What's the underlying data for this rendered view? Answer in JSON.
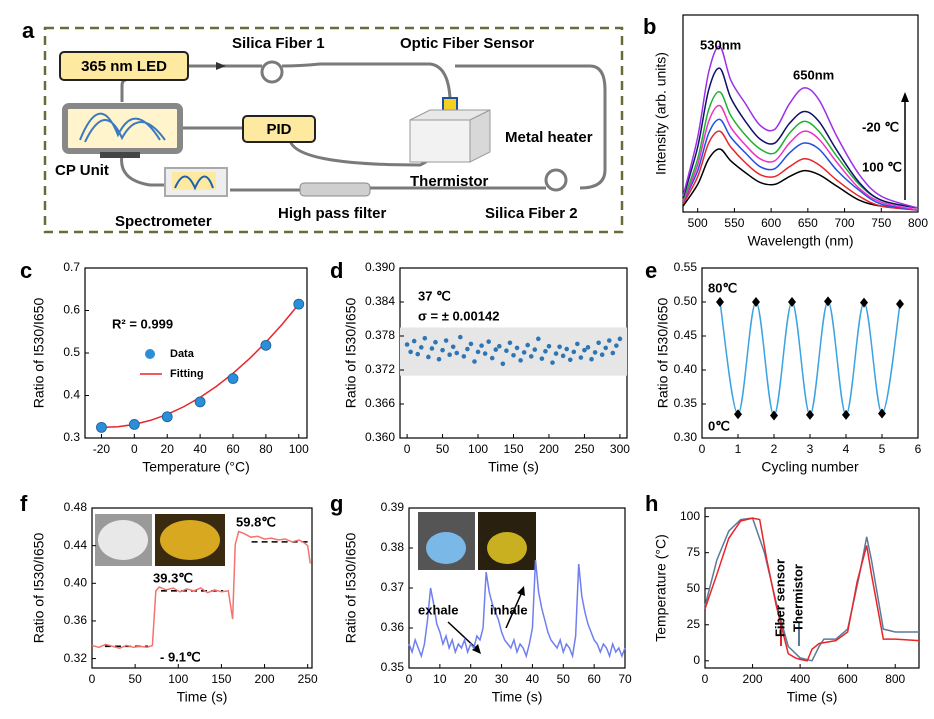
{
  "diagram": {
    "panel": "a",
    "led": "365 nm LED",
    "fiber1": "Silica Fiber 1",
    "sensor": "Optic Fiber Sensor",
    "pid": "PID",
    "heater": "Metal heater",
    "cp": "CP Unit",
    "thermistor": "Thermistor",
    "spectrometer": "Spectrometer",
    "filter": "High pass filter",
    "fiber2": "Silica Fiber 2"
  },
  "chart_data": [
    {
      "type": "line",
      "panel": "b",
      "x_label": "Wavelength (nm)",
      "y_label": "Intensity (arb. units)",
      "xlim": [
        480,
        800
      ],
      "xticks": [
        500,
        550,
        600,
        650,
        700,
        750,
        800
      ],
      "ylim": [
        0,
        1
      ],
      "smooth": true,
      "x": [
        480,
        500,
        515,
        530,
        545,
        565,
        585,
        605,
        625,
        645,
        665,
        690,
        720,
        750,
        800
      ],
      "series": [
        {
          "color": "#000000",
          "line": true,
          "values": [
            0.03,
            0.14,
            0.27,
            0.32,
            0.26,
            0.2,
            0.15,
            0.14,
            0.18,
            0.21,
            0.19,
            0.13,
            0.06,
            0.03,
            0.01
          ]
        },
        {
          "color": "#e8262a",
          "line": true,
          "values": [
            0.04,
            0.18,
            0.35,
            0.41,
            0.33,
            0.25,
            0.19,
            0.18,
            0.23,
            0.27,
            0.24,
            0.16,
            0.08,
            0.03,
            0.01
          ]
        },
        {
          "color": "#2050e0",
          "line": true,
          "values": [
            0.05,
            0.21,
            0.4,
            0.47,
            0.38,
            0.3,
            0.23,
            0.22,
            0.3,
            0.35,
            0.32,
            0.21,
            0.11,
            0.04,
            0.01
          ]
        },
        {
          "color": "#f030c8",
          "line": true,
          "values": [
            0.05,
            0.24,
            0.46,
            0.54,
            0.43,
            0.34,
            0.27,
            0.26,
            0.35,
            0.41,
            0.37,
            0.25,
            0.12,
            0.05,
            0.01
          ]
        },
        {
          "color": "#20b030",
          "line": true,
          "values": [
            0.06,
            0.27,
            0.52,
            0.61,
            0.49,
            0.39,
            0.32,
            0.3,
            0.4,
            0.46,
            0.41,
            0.28,
            0.14,
            0.06,
            0.02
          ]
        },
        {
          "color": "#10106a",
          "line": true,
          "values": [
            0.07,
            0.33,
            0.62,
            0.73,
            0.58,
            0.46,
            0.37,
            0.35,
            0.45,
            0.51,
            0.46,
            0.31,
            0.15,
            0.06,
            0.02
          ]
        },
        {
          "color": "#9a30e8",
          "line": true,
          "values": [
            0.08,
            0.38,
            0.71,
            0.84,
            0.67,
            0.55,
            0.44,
            0.42,
            0.55,
            0.63,
            0.57,
            0.38,
            0.19,
            0.08,
            0.02
          ]
        }
      ],
      "annotations": [
        "530nm",
        "650nm",
        "-20 ℃",
        "100 ℃"
      ]
    },
    {
      "type": "scatter",
      "panel": "c",
      "x_label": "Temperature (°C)",
      "y_label": "Ratio of I530/I650",
      "xlim": [
        -30,
        105
      ],
      "xticks": [
        -20,
        0,
        20,
        40,
        60,
        80,
        100
      ],
      "ylim": [
        0.3,
        0.7
      ],
      "yticks": [
        0.3,
        0.4,
        0.5,
        0.6,
        0.7
      ],
      "legend": "center left",
      "series": [
        {
          "name": "Fitting",
          "color": "#e8262a",
          "line": true,
          "x": [
            -20,
            -10,
            0,
            10,
            20,
            30,
            40,
            50,
            60,
            70,
            80,
            90,
            100
          ],
          "values": [
            0.325,
            0.3264,
            0.332,
            0.3417,
            0.3555,
            0.3735,
            0.3956,
            0.4218,
            0.4522,
            0.4866,
            0.5253,
            0.568,
            0.615
          ]
        },
        {
          "name": "Data",
          "color": "#2a8fd8",
          "marker": "circle",
          "x": [
            -20,
            0,
            20,
            40,
            60,
            80,
            100
          ],
          "values": [
            0.325,
            0.332,
            0.35,
            0.385,
            0.44,
            0.518,
            0.615
          ]
        }
      ],
      "annotations": [
        "R² = 0.999"
      ]
    },
    {
      "type": "scatter",
      "panel": "d",
      "x_label": "Time (s)",
      "y_label": "Ratio of I530/I650",
      "xlim": [
        -10,
        310
      ],
      "xticks": [
        0,
        50,
        100,
        150,
        200,
        250,
        300
      ],
      "ylim": [
        0.36,
        0.39
      ],
      "yticks": [
        {
          "value": 0.36,
          "label": "0.360"
        },
        0.366,
        0.372,
        0.378,
        0.384,
        {
          "value": 0.39,
          "label": "0.390"
        }
      ],
      "band": [
        0.371,
        0.3795
      ],
      "series": [
        {
          "color": "#2e75b6",
          "marker": "dot",
          "x": [
            0,
            5,
            10,
            15,
            20,
            25,
            30,
            35,
            40,
            45,
            50,
            55,
            60,
            65,
            70,
            75,
            80,
            85,
            90,
            95,
            100,
            105,
            110,
            115,
            120,
            125,
            130,
            135,
            140,
            145,
            150,
            155,
            160,
            165,
            170,
            175,
            180,
            185,
            190,
            195,
            200,
            205,
            210,
            215,
            220,
            225,
            230,
            235,
            240,
            245,
            250,
            255,
            260,
            265,
            270,
            275,
            280,
            285,
            290,
            295,
            300
          ],
          "values": [
            0.3765,
            0.3752,
            0.3771,
            0.3748,
            0.376,
            0.3776,
            0.3743,
            0.3758,
            0.3769,
            0.3739,
            0.3755,
            0.3772,
            0.3747,
            0.3761,
            0.375,
            0.3778,
            0.3744,
            0.3757,
            0.3766,
            0.3735,
            0.3752,
            0.3763,
            0.3749,
            0.377,
            0.3741,
            0.3756,
            0.3762,
            0.3731,
            0.3754,
            0.3768,
            0.3746,
            0.3759,
            0.3737,
            0.3751,
            0.3764,
            0.3744,
            0.3756,
            0.3775,
            0.374,
            0.3753,
            0.3762,
            0.3733,
            0.3749,
            0.3761,
            0.3745,
            0.3757,
            0.3738,
            0.3752,
            0.3766,
            0.3742,
            0.3755,
            0.376,
            0.3739,
            0.3751,
            0.3768,
            0.3747,
            0.3759,
            0.3772,
            0.375,
            0.3763,
            0.3775
          ]
        }
      ],
      "annotations": [
        "37 ℃",
        "σ = ± 0.00142"
      ]
    },
    {
      "type": "line",
      "panel": "e",
      "x_label": "Cycling number",
      "y_label": "Ratio of I530/I650",
      "xlim": [
        0,
        6
      ],
      "xticks": [
        0,
        1,
        2,
        3,
        4,
        5,
        6
      ],
      "ylim": [
        0.3,
        0.55
      ],
      "yticks": [
        {
          "value": 0.3,
          "label": "0.30"
        },
        0.35,
        {
          "value": 0.4,
          "label": "0.40"
        },
        0.45,
        {
          "value": 0.5,
          "label": "0.50"
        },
        0.55
      ],
      "smooth": true,
      "series": [
        {
          "color": "#3ba3e0",
          "line": true,
          "marker": "diamond",
          "marker_color": "#000000",
          "x": [
            0.5,
            1,
            1.5,
            2,
            2.5,
            3,
            3.5,
            4,
            4.5,
            5,
            5.5
          ],
          "values": [
            0.5,
            0.335,
            0.5,
            0.333,
            0.5,
            0.334,
            0.501,
            0.334,
            0.499,
            0.336,
            0.497
          ]
        }
      ],
      "annotations": [
        "80℃",
        "0℃"
      ]
    },
    {
      "type": "line",
      "panel": "f",
      "x_label": "Time (s)",
      "y_label": "Ratio of I530/I650",
      "xlim": [
        0,
        255
      ],
      "xticks": [
        0,
        50,
        100,
        150,
        200,
        250
      ],
      "ylim": [
        0.31,
        0.48
      ],
      "yticks": [
        0.32,
        0.36,
        {
          "value": 0.4,
          "label": "0.40"
        },
        0.44,
        0.48
      ],
      "levels": [
        {
          "x": [
            15,
            65
          ],
          "value": 0.333
        },
        {
          "x": [
            80,
            152
          ],
          "value": 0.392
        },
        {
          "x": [
            185,
            250
          ],
          "value": 0.444
        }
      ],
      "series": [
        {
          "color": "#f4736e",
          "line": true,
          "x": [
            0,
            8,
            16,
            24,
            32,
            40,
            48,
            56,
            64,
            70,
            74,
            78,
            86,
            94,
            102,
            110,
            118,
            126,
            134,
            142,
            150,
            158,
            163,
            166,
            170,
            176,
            184,
            192,
            200,
            208,
            216,
            224,
            232,
            240,
            246,
            250,
            253
          ],
          "values": [
            0.334,
            0.332,
            0.335,
            0.333,
            0.331,
            0.334,
            0.332,
            0.333,
            0.332,
            0.334,
            0.392,
            0.396,
            0.393,
            0.395,
            0.391,
            0.394,
            0.392,
            0.395,
            0.39,
            0.393,
            0.391,
            0.392,
            0.362,
            0.441,
            0.455,
            0.453,
            0.449,
            0.45,
            0.447,
            0.448,
            0.446,
            0.447,
            0.444,
            0.446,
            0.443,
            0.44,
            0.421
          ]
        }
      ],
      "annotations": [
        "- 9.1℃",
        "39.3℃",
        "59.8℃"
      ]
    },
    {
      "type": "line",
      "panel": "g",
      "x_label": "Time (s)",
      "y_label": "Ratio of I530/I650",
      "xlim": [
        0,
        70
      ],
      "xticks": [
        0,
        10,
        20,
        30,
        40,
        50,
        60,
        70
      ],
      "ylim": [
        0.35,
        0.39
      ],
      "yticks": [
        0.35,
        0.36,
        0.37,
        0.38,
        0.39
      ],
      "series": [
        {
          "color": "#6f7ff0",
          "line": true,
          "x": [
            0,
            1,
            2,
            3,
            4,
            5,
            6,
            7,
            8,
            9,
            10,
            11,
            12,
            13,
            14,
            15,
            16,
            17,
            18,
            19,
            20,
            21,
            22,
            23,
            24,
            25,
            26,
            27,
            28,
            29,
            30,
            31,
            32,
            33,
            34,
            35,
            36,
            37,
            38,
            39,
            40,
            41,
            42,
            43,
            44,
            45,
            46,
            47,
            48,
            49,
            50,
            51,
            52,
            53,
            54,
            55,
            56,
            57,
            58,
            59,
            60,
            61,
            62,
            63,
            64,
            65,
            66,
            67,
            68,
            69,
            70
          ],
          "values": [
            0.356,
            0.354,
            0.357,
            0.355,
            0.353,
            0.356,
            0.362,
            0.37,
            0.366,
            0.361,
            0.359,
            0.356,
            0.358,
            0.355,
            0.357,
            0.354,
            0.356,
            0.355,
            0.357,
            0.354,
            0.356,
            0.355,
            0.358,
            0.357,
            0.36,
            0.374,
            0.369,
            0.366,
            0.364,
            0.362,
            0.359,
            0.357,
            0.356,
            0.355,
            0.357,
            0.354,
            0.356,
            0.355,
            0.353,
            0.356,
            0.36,
            0.377,
            0.369,
            0.365,
            0.362,
            0.359,
            0.357,
            0.356,
            0.355,
            0.357,
            0.354,
            0.356,
            0.355,
            0.353,
            0.358,
            0.376,
            0.368,
            0.364,
            0.361,
            0.359,
            0.357,
            0.356,
            0.354,
            0.356,
            0.355,
            0.353,
            0.356,
            0.354,
            0.355,
            0.353,
            0.355
          ]
        }
      ],
      "annotations": [
        "exhale",
        "inhale"
      ]
    },
    {
      "type": "line",
      "panel": "h",
      "x_label": "Time (s)",
      "y_label": "Temperature (°C)",
      "xlim": [
        0,
        900
      ],
      "xticks": [
        0,
        200,
        400,
        600,
        800
      ],
      "ylim": [
        -5,
        106
      ],
      "yticks": [
        0,
        25,
        50,
        75,
        100
      ],
      "legend": "lower center",
      "series": [
        {
          "name": "Thermistor",
          "color": "#5b7a99",
          "line": true,
          "x": [
            0,
            50,
            100,
            150,
            200,
            250,
            300,
            350,
            400,
            450,
            480,
            500,
            550,
            600,
            650,
            680,
            700,
            750,
            800,
            900
          ],
          "values": [
            38,
            70,
            90,
            98,
            99,
            75,
            40,
            10,
            2,
            0,
            10,
            15,
            15,
            22,
            60,
            86,
            70,
            22,
            20,
            20
          ]
        },
        {
          "name": "Fiber sensor",
          "color": "#e8262a",
          "line": true,
          "x": [
            0,
            50,
            100,
            150,
            200,
            230,
            260,
            300,
            350,
            380,
            400,
            430,
            450,
            480,
            550,
            600,
            640,
            680,
            700,
            750,
            800,
            900
          ],
          "values": [
            36,
            60,
            85,
            97,
            99,
            98,
            70,
            38,
            5,
            2,
            1,
            0,
            8,
            12,
            14,
            20,
            55,
            80,
            60,
            15,
            15,
            14
          ]
        }
      ]
    }
  ]
}
